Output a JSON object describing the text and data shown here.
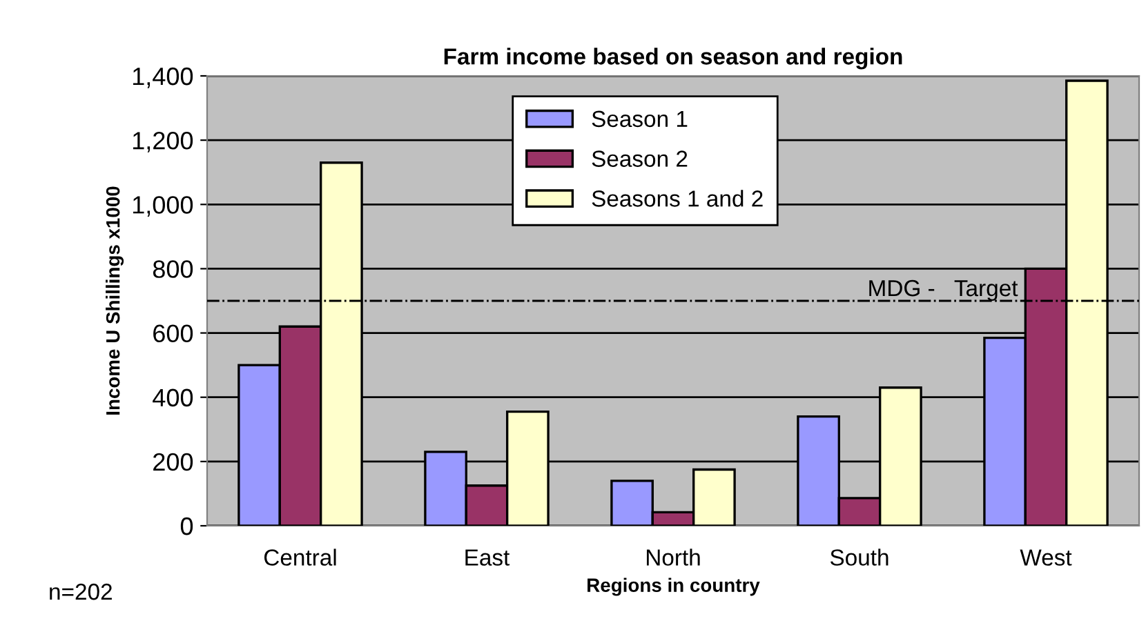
{
  "chart_data": {
    "type": "bar",
    "title": "Farm income based on season and region",
    "xlabel": "Regions in country",
    "ylabel": "Income U Shillings x1000",
    "categories": [
      "Central",
      "East",
      "North",
      "South",
      "West"
    ],
    "series": [
      {
        "name": "Season 1",
        "color": "#9999ff",
        "values": [
          500,
          230,
          140,
          340,
          585
        ]
      },
      {
        "name": "Season 2",
        "color": "#993366",
        "values": [
          620,
          125,
          42,
          86,
          800
        ]
      },
      {
        "name": "Seasons 1 and 2",
        "color": "#ffffcc",
        "values": [
          1130,
          355,
          175,
          430,
          1385
        ]
      }
    ],
    "ylim": [
      0,
      1400
    ],
    "yticks": [
      {
        "value": 0,
        "label": "0"
      },
      {
        "value": 200,
        "label": "200"
      },
      {
        "value": 400,
        "label": "400"
      },
      {
        "value": 600,
        "label": "600"
      },
      {
        "value": 800,
        "label": "800"
      },
      {
        "value": 1000,
        "label": "1,000"
      },
      {
        "value": 1200,
        "label": "1,200"
      },
      {
        "value": 1400,
        "label": "1,400"
      }
    ],
    "ref_lines": [
      {
        "axis": "y",
        "value": 700,
        "label": "MDG -   Target",
        "color": "#000000",
        "line_style": "dashdot"
      }
    ],
    "annotations": [
      "n=202"
    ],
    "grid": "y",
    "legend": "top"
  }
}
